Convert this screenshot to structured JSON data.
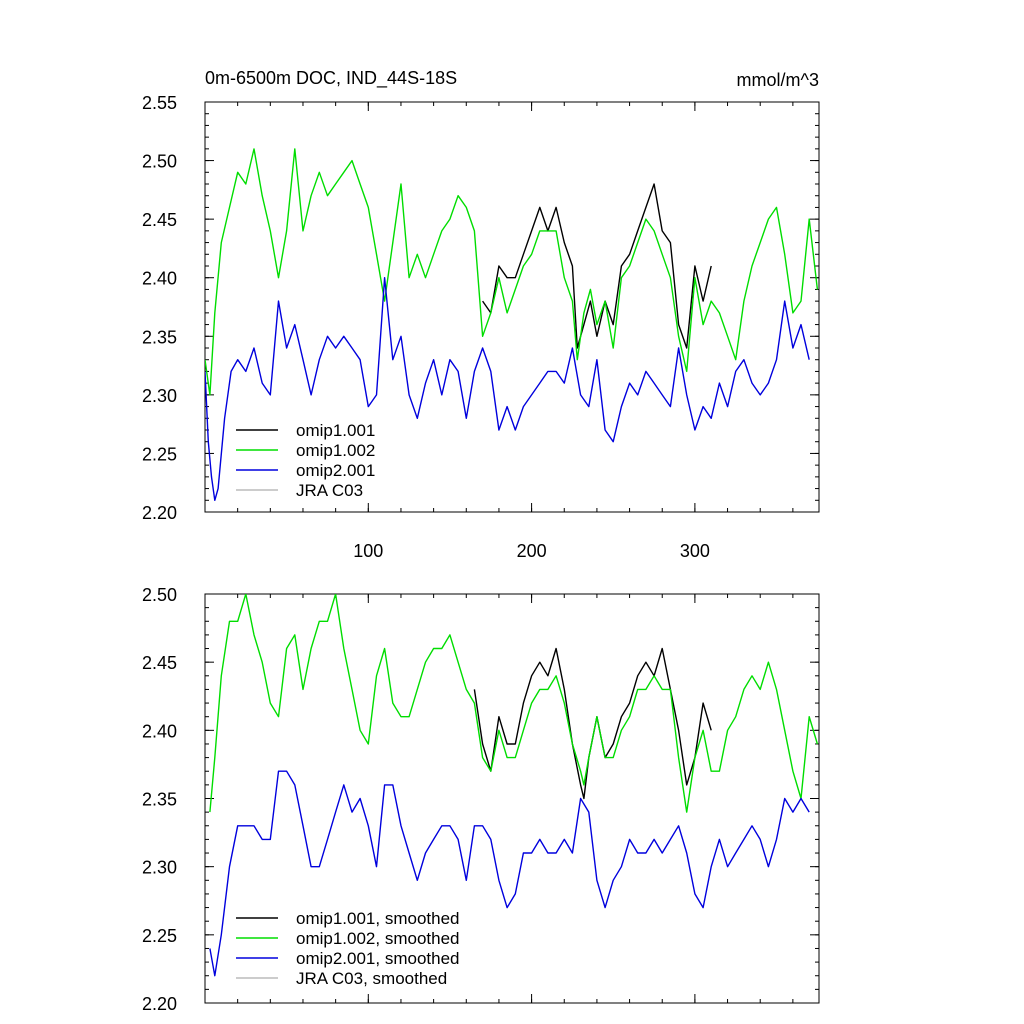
{
  "chart_data": [
    {
      "type": "line",
      "title": "0m-6500m DOC, IND_44S-18S",
      "units": "mmol/m^3",
      "xlim": [
        0,
        376
      ],
      "ylim": [
        2.2,
        2.55
      ],
      "xticks": [
        100,
        200,
        300
      ],
      "xtick_labels": [
        "100",
        "200",
        "300"
      ],
      "yticks": [
        2.2,
        2.25,
        2.3,
        2.35,
        2.4,
        2.45,
        2.5,
        2.55
      ],
      "ytick_labels": [
        "2.20",
        "2.25",
        "2.30",
        "2.35",
        "2.40",
        "2.45",
        "2.50",
        "2.55"
      ],
      "legend_position": "lower-left",
      "series": [
        {
          "name": "omip1.001",
          "color": "#000000",
          "x": [
            170,
            175,
            180,
            185,
            190,
            195,
            200,
            205,
            210,
            215,
            220,
            225,
            228,
            232,
            236,
            240,
            245,
            250,
            255,
            260,
            265,
            270,
            275,
            280,
            285,
            290,
            295,
            300,
            305,
            310
          ],
          "y": [
            2.38,
            2.37,
            2.41,
            2.4,
            2.4,
            2.42,
            2.44,
            2.46,
            2.44,
            2.46,
            2.43,
            2.41,
            2.34,
            2.36,
            2.38,
            2.35,
            2.38,
            2.36,
            2.41,
            2.42,
            2.44,
            2.46,
            2.48,
            2.44,
            2.43,
            2.36,
            2.34,
            2.41,
            2.38,
            2.41
          ]
        },
        {
          "name": "omip1.002",
          "color": "#00dd00",
          "x": [
            0,
            3,
            6,
            10,
            15,
            20,
            25,
            30,
            35,
            40,
            45,
            50,
            55,
            60,
            65,
            70,
            75,
            80,
            85,
            90,
            95,
            100,
            105,
            110,
            115,
            120,
            125,
            130,
            135,
            140,
            145,
            150,
            155,
            160,
            165,
            170,
            175,
            180,
            185,
            190,
            195,
            200,
            205,
            210,
            215,
            220,
            225,
            228,
            232,
            236,
            240,
            245,
            250,
            255,
            260,
            265,
            270,
            275,
            280,
            285,
            290,
            295,
            300,
            305,
            310,
            315,
            320,
            325,
            330,
            335,
            340,
            345,
            350,
            355,
            360,
            365,
            370,
            375
          ],
          "y": [
            2.33,
            2.3,
            2.37,
            2.43,
            2.46,
            2.49,
            2.48,
            2.51,
            2.47,
            2.44,
            2.4,
            2.44,
            2.51,
            2.44,
            2.47,
            2.49,
            2.47,
            2.48,
            2.49,
            2.5,
            2.48,
            2.46,
            2.42,
            2.38,
            2.43,
            2.48,
            2.4,
            2.42,
            2.4,
            2.42,
            2.44,
            2.45,
            2.47,
            2.46,
            2.44,
            2.35,
            2.37,
            2.4,
            2.37,
            2.39,
            2.41,
            2.42,
            2.44,
            2.44,
            2.44,
            2.4,
            2.38,
            2.33,
            2.37,
            2.39,
            2.36,
            2.38,
            2.34,
            2.4,
            2.41,
            2.43,
            2.45,
            2.44,
            2.42,
            2.4,
            2.35,
            2.32,
            2.4,
            2.36,
            2.38,
            2.37,
            2.35,
            2.33,
            2.38,
            2.41,
            2.43,
            2.45,
            2.46,
            2.42,
            2.37,
            2.38,
            2.45,
            2.39
          ]
        },
        {
          "name": "omip2.001",
          "color": "#0000dd",
          "x": [
            0,
            2,
            4,
            6,
            8,
            12,
            16,
            20,
            25,
            30,
            35,
            40,
            45,
            50,
            55,
            60,
            65,
            70,
            75,
            80,
            85,
            90,
            95,
            100,
            105,
            110,
            115,
            120,
            125,
            130,
            135,
            140,
            145,
            150,
            155,
            160,
            165,
            170,
            175,
            180,
            185,
            190,
            195,
            200,
            205,
            210,
            215,
            220,
            225,
            230,
            235,
            240,
            245,
            250,
            255,
            260,
            265,
            270,
            275,
            280,
            285,
            290,
            295,
            300,
            305,
            310,
            315,
            320,
            325,
            330,
            335,
            340,
            345,
            350,
            355,
            360,
            365,
            370
          ],
          "y": [
            2.32,
            2.26,
            2.23,
            2.21,
            2.22,
            2.28,
            2.32,
            2.33,
            2.32,
            2.34,
            2.31,
            2.3,
            2.38,
            2.34,
            2.36,
            2.33,
            2.3,
            2.33,
            2.35,
            2.34,
            2.35,
            2.34,
            2.33,
            2.29,
            2.3,
            2.4,
            2.33,
            2.35,
            2.3,
            2.28,
            2.31,
            2.33,
            2.3,
            2.33,
            2.32,
            2.28,
            2.32,
            2.34,
            2.32,
            2.27,
            2.29,
            2.27,
            2.29,
            2.3,
            2.31,
            2.32,
            2.32,
            2.31,
            2.34,
            2.3,
            2.29,
            2.33,
            2.27,
            2.26,
            2.29,
            2.31,
            2.3,
            2.32,
            2.31,
            2.3,
            2.29,
            2.34,
            2.3,
            2.27,
            2.29,
            2.28,
            2.31,
            2.29,
            2.32,
            2.33,
            2.31,
            2.3,
            2.31,
            2.33,
            2.38,
            2.34,
            2.36,
            2.33
          ]
        },
        {
          "name": "JRA C03",
          "color": "#bbbbbb",
          "x": [],
          "y": []
        }
      ]
    },
    {
      "type": "line",
      "title": "",
      "xlim": [
        0,
        376
      ],
      "ylim": [
        2.2,
        2.5
      ],
      "xticks": [
        100,
        200,
        300
      ],
      "xtick_labels": [],
      "yticks": [
        2.2,
        2.25,
        2.3,
        2.35,
        2.4,
        2.45,
        2.5
      ],
      "ytick_labels": [
        "2.20",
        "2.25",
        "2.30",
        "2.35",
        "2.40",
        "2.45",
        "2.50"
      ],
      "legend_position": "lower-left",
      "series": [
        {
          "name": "omip1.001, smoothed",
          "color": "#000000",
          "x": [
            165,
            170,
            175,
            180,
            185,
            190,
            195,
            200,
            205,
            210,
            215,
            220,
            225,
            230,
            232,
            235,
            240,
            245,
            250,
            255,
            260,
            265,
            270,
            275,
            280,
            285,
            290,
            295,
            300,
            305,
            310
          ],
          "y": [
            2.43,
            2.39,
            2.37,
            2.41,
            2.39,
            2.39,
            2.42,
            2.44,
            2.45,
            2.44,
            2.46,
            2.43,
            2.39,
            2.36,
            2.35,
            2.38,
            2.41,
            2.38,
            2.39,
            2.41,
            2.42,
            2.44,
            2.45,
            2.44,
            2.46,
            2.43,
            2.4,
            2.36,
            2.38,
            2.42,
            2.4
          ]
        },
        {
          "name": "omip1.002, smoothed",
          "color": "#00dd00",
          "x": [
            3,
            6,
            10,
            15,
            20,
            25,
            30,
            35,
            40,
            45,
            50,
            55,
            60,
            65,
            70,
            75,
            80,
            85,
            90,
            95,
            100,
            105,
            110,
            115,
            120,
            125,
            130,
            135,
            140,
            145,
            150,
            155,
            160,
            165,
            170,
            175,
            180,
            185,
            190,
            195,
            200,
            205,
            210,
            215,
            220,
            225,
            230,
            232,
            235,
            240,
            245,
            250,
            255,
            260,
            265,
            270,
            275,
            280,
            285,
            290,
            295,
            300,
            305,
            310,
            315,
            320,
            325,
            330,
            335,
            340,
            345,
            350,
            355,
            360,
            365,
            370,
            375
          ],
          "y": [
            2.34,
            2.38,
            2.44,
            2.48,
            2.48,
            2.5,
            2.47,
            2.45,
            2.42,
            2.41,
            2.46,
            2.47,
            2.43,
            2.46,
            2.48,
            2.48,
            2.5,
            2.46,
            2.43,
            2.4,
            2.39,
            2.44,
            2.46,
            2.42,
            2.41,
            2.41,
            2.43,
            2.45,
            2.46,
            2.46,
            2.47,
            2.45,
            2.43,
            2.42,
            2.38,
            2.37,
            2.4,
            2.38,
            2.38,
            2.4,
            2.42,
            2.43,
            2.43,
            2.44,
            2.42,
            2.39,
            2.37,
            2.36,
            2.38,
            2.41,
            2.38,
            2.38,
            2.4,
            2.41,
            2.43,
            2.43,
            2.44,
            2.43,
            2.43,
            2.38,
            2.34,
            2.38,
            2.4,
            2.37,
            2.37,
            2.4,
            2.41,
            2.43,
            2.44,
            2.43,
            2.45,
            2.43,
            2.4,
            2.37,
            2.35,
            2.41,
            2.39
          ]
        },
        {
          "name": "omip2.001, smoothed",
          "color": "#0000dd",
          "x": [
            3,
            6,
            10,
            15,
            20,
            25,
            30,
            35,
            40,
            45,
            50,
            55,
            60,
            65,
            70,
            75,
            80,
            85,
            90,
            95,
            100,
            105,
            110,
            115,
            120,
            125,
            130,
            135,
            140,
            145,
            150,
            155,
            160,
            165,
            170,
            175,
            180,
            185,
            190,
            195,
            200,
            205,
            210,
            215,
            220,
            225,
            230,
            235,
            240,
            245,
            250,
            255,
            260,
            265,
            270,
            275,
            280,
            285,
            290,
            295,
            300,
            305,
            310,
            315,
            320,
            325,
            330,
            335,
            340,
            345,
            350,
            355,
            360,
            365,
            370
          ],
          "y": [
            2.24,
            2.22,
            2.25,
            2.3,
            2.33,
            2.33,
            2.33,
            2.32,
            2.32,
            2.37,
            2.37,
            2.36,
            2.33,
            2.3,
            2.3,
            2.32,
            2.34,
            2.36,
            2.34,
            2.35,
            2.33,
            2.3,
            2.36,
            2.36,
            2.33,
            2.31,
            2.29,
            2.31,
            2.32,
            2.33,
            2.33,
            2.32,
            2.29,
            2.33,
            2.33,
            2.32,
            2.29,
            2.27,
            2.28,
            2.31,
            2.31,
            2.32,
            2.31,
            2.31,
            2.32,
            2.31,
            2.35,
            2.34,
            2.29,
            2.27,
            2.29,
            2.3,
            2.32,
            2.31,
            2.31,
            2.32,
            2.31,
            2.32,
            2.33,
            2.31,
            2.28,
            2.27,
            2.3,
            2.32,
            2.3,
            2.31,
            2.32,
            2.33,
            2.32,
            2.3,
            2.32,
            2.35,
            2.34,
            2.35,
            2.34
          ]
        },
        {
          "name": "JRA C03, smoothed",
          "color": "#bbbbbb",
          "x": [],
          "y": []
        }
      ]
    }
  ]
}
